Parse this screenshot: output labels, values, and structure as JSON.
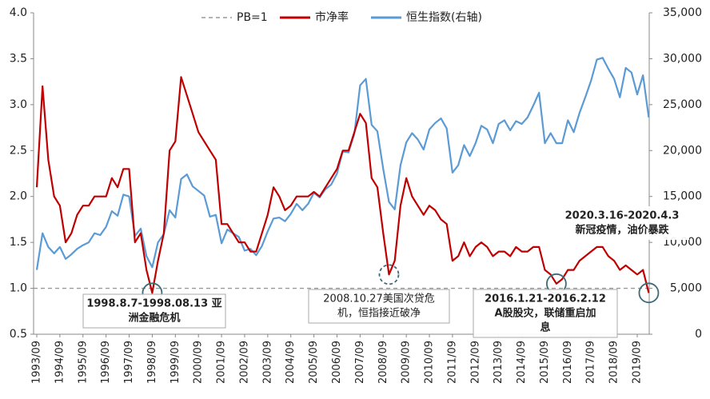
{
  "chart_data": {
    "type": "line",
    "x": [
      "1993/09",
      "1993/12",
      "1994/03",
      "1994/06",
      "1994/09",
      "1994/12",
      "1995/03",
      "1995/06",
      "1995/09",
      "1995/12",
      "1996/03",
      "1996/06",
      "1996/09",
      "1996/12",
      "1997/03",
      "1997/06",
      "1997/09",
      "1997/12",
      "1998/03",
      "1998/06",
      "1998/09",
      "1998/12",
      "1999/03",
      "1999/06",
      "1999/09",
      "1999/12",
      "2000/03",
      "2000/06",
      "2000/09",
      "2000/12",
      "2001/03",
      "2001/06",
      "2001/09",
      "2001/12",
      "2002/03",
      "2002/06",
      "2002/09",
      "2002/12",
      "2003/03",
      "2003/06",
      "2003/09",
      "2003/12",
      "2004/03",
      "2004/06",
      "2004/09",
      "2004/12",
      "2005/03",
      "2005/06",
      "2005/09",
      "2005/12",
      "2006/03",
      "2006/06",
      "2006/09",
      "2006/12",
      "2007/03",
      "2007/06",
      "2007/09",
      "2007/12",
      "2008/03",
      "2008/06",
      "2008/09",
      "2008/12",
      "2009/03",
      "2009/06",
      "2009/09",
      "2009/12",
      "2010/03",
      "2010/06",
      "2010/09",
      "2010/12",
      "2011/03",
      "2011/06",
      "2011/09",
      "2011/12",
      "2012/03",
      "2012/06",
      "2012/09",
      "2012/12",
      "2013/03",
      "2013/06",
      "2013/09",
      "2013/12",
      "2014/03",
      "2014/06",
      "2014/09",
      "2014/12",
      "2015/03",
      "2015/06",
      "2015/09",
      "2015/12",
      "2016/03",
      "2016/06",
      "2016/09",
      "2016/12",
      "2017/03",
      "2017/06",
      "2017/09",
      "2017/12",
      "2018/03",
      "2018/06",
      "2018/09",
      "2018/12",
      "2019/03",
      "2019/06",
      "2019/09",
      "2019/12",
      "2020/03"
    ],
    "xticks": [
      "1993/09",
      "1994/09",
      "1995/09",
      "1996/09",
      "1997/09",
      "1998/09",
      "1999/09",
      "2000/09",
      "2001/09",
      "2002/09",
      "2003/09",
      "2004/09",
      "2005/09",
      "2006/09",
      "2007/09",
      "2008/09",
      "2009/09",
      "2010/09",
      "2011/09",
      "2012/09",
      "2013/09",
      "2014/09",
      "2015/09",
      "2016/09",
      "2017/09",
      "2018/09",
      "2019/09"
    ],
    "series": [
      {
        "name": "市净率",
        "color": "#c00000",
        "axis": "y",
        "values": [
          2.1,
          3.2,
          2.4,
          2.0,
          1.9,
          1.5,
          1.6,
          1.8,
          1.9,
          1.9,
          2.0,
          2.0,
          2.0,
          2.2,
          2.1,
          2.3,
          2.3,
          1.5,
          1.6,
          1.2,
          0.95,
          1.3,
          1.6,
          2.5,
          2.6,
          3.3,
          3.1,
          2.9,
          2.7,
          2.6,
          2.5,
          2.4,
          1.7,
          1.7,
          1.6,
          1.5,
          1.5,
          1.4,
          1.4,
          1.6,
          1.8,
          2.1,
          2.0,
          1.85,
          1.9,
          2.0,
          2.0,
          2.0,
          2.05,
          2.0,
          2.1,
          2.2,
          2.3,
          2.5,
          2.5,
          2.7,
          2.9,
          2.8,
          2.2,
          2.1,
          1.6,
          1.15,
          1.3,
          1.9,
          2.2,
          2.0,
          1.9,
          1.8,
          1.9,
          1.85,
          1.75,
          1.7,
          1.3,
          1.35,
          1.5,
          1.35,
          1.45,
          1.5,
          1.45,
          1.35,
          1.4,
          1.4,
          1.35,
          1.45,
          1.4,
          1.4,
          1.45,
          1.45,
          1.2,
          1.15,
          1.05,
          1.1,
          1.2,
          1.2,
          1.3,
          1.35,
          1.4,
          1.45,
          1.45,
          1.35,
          1.3,
          1.2,
          1.25,
          1.2,
          1.15,
          1.2,
          0.95
        ]
      },
      {
        "name": "恒生指数(右轴)",
        "color": "#5b9bd5",
        "axis": "y2",
        "values": [
          7000,
          11000,
          9500,
          8800,
          9500,
          8200,
          8700,
          9300,
          9700,
          10000,
          11000,
          10800,
          11700,
          13400,
          12900,
          15200,
          15000,
          10700,
          11500,
          8500,
          7300,
          10000,
          10900,
          13500,
          12700,
          16900,
          17400,
          16100,
          15600,
          15100,
          12800,
          13000,
          9900,
          11400,
          11000,
          10600,
          9100,
          9300,
          8600,
          9600,
          11200,
          12600,
          12700,
          12300,
          13100,
          14200,
          13500,
          14200,
          15400,
          14900,
          15800,
          16300,
          17500,
          19900,
          19800,
          21800,
          27100,
          27800,
          22800,
          22100,
          18000,
          14400,
          13600,
          18400,
          20900,
          21900,
          21200,
          20100,
          22300,
          23000,
          23500,
          22400,
          17600,
          18400,
          20600,
          19400,
          20800,
          22700,
          22300,
          20800,
          22900,
          23300,
          22200,
          23200,
          22900,
          23600,
          24900,
          26300,
          20800,
          21900,
          20800,
          20800,
          23300,
          22000,
          24100,
          25800,
          27600,
          29900,
          30100,
          28900,
          27800,
          25800,
          29000,
          28500,
          26100,
          28200,
          23600
        ]
      }
    ],
    "hline": {
      "name": "PB=1",
      "value": 1,
      "color": "#999999"
    },
    "ylim": [
      0.5,
      4.0
    ],
    "yticks": [
      {
        "value": 0.5,
        "label": "0.5"
      },
      {
        "value": 1,
        "label": "1.0"
      },
      {
        "value": 1.5,
        "label": "1.5"
      },
      {
        "value": 2,
        "label": "2.0"
      },
      {
        "value": 2.5,
        "label": "2.5"
      },
      {
        "value": 3,
        "label": "3.0"
      },
      {
        "value": 3.5,
        "label": "3.5"
      },
      {
        "value": 4,
        "label": "4.0"
      }
    ],
    "y2lim": [
      0,
      35000
    ],
    "y2ticks": [
      0,
      {
        "value": 5000,
        "label": "5,000"
      },
      {
        "value": 10000,
        "label": "10,000"
      },
      {
        "value": 15000,
        "label": "15,000"
      },
      {
        "value": 20000,
        "label": "20,000"
      },
      {
        "value": 25000,
        "label": "25,000"
      },
      {
        "value": 30000,
        "label": "30,000"
      },
      {
        "value": 35000,
        "label": "35,000"
      }
    ],
    "legend": "top",
    "annotations": [
      {
        "x": "1998/09",
        "y": 0.95,
        "lines": [
          "1998.8.7-1998.08.13 亚",
          "洲金融危机"
        ]
      },
      {
        "x": "2008/12",
        "y": 1.15,
        "lines": [
          "2008.10.27美国次贷危",
          "机，恒指接近破净"
        ]
      },
      {
        "x": "2016/03",
        "y": 1.05,
        "lines": [
          "2016.1.21-2016.2.12",
          "A股股灾，联储重启加",
          "息"
        ]
      },
      {
        "x": "2020/03",
        "y": 0.95,
        "lines": [
          "2020.3.16-2020.4.3",
          "新冠疫情，油价暴跌"
        ]
      }
    ]
  }
}
